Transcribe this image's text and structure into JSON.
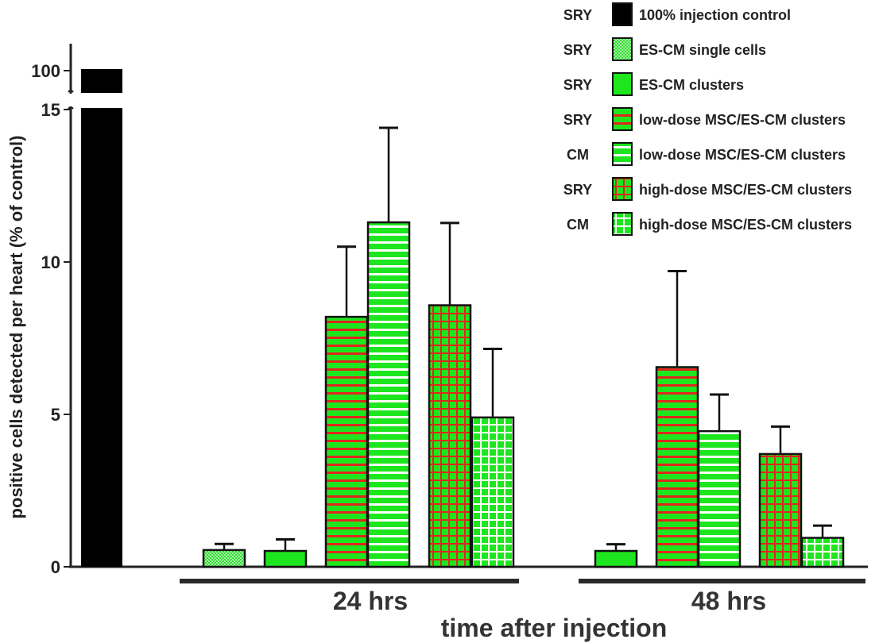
{
  "chart_data": {
    "type": "bar",
    "xlabel": "time after injection",
    "ylabel": "positive cells detected per heart (% of control)",
    "ylim": [
      0,
      15
    ],
    "y_break": {
      "lower_max": 15,
      "upper_tick": 100
    },
    "yticks": [
      "0",
      "5",
      "10",
      "15"
    ],
    "upper_ytick": "100",
    "groups": [
      "24 hrs",
      "48 hrs"
    ],
    "series": [
      {
        "key": "control",
        "prefix": "SRY",
        "name": "100% injection control",
        "pattern": "solid",
        "color": "#000000",
        "values": {
          "control": 100
        }
      },
      {
        "key": "single",
        "prefix": "SRY",
        "name": "ES-CM single cells",
        "pattern": "dots",
        "color": "#22d422",
        "values": {
          "24 hrs": 0.55,
          "48 hrs": null
        },
        "errors": {
          "24 hrs": 0.2
        }
      },
      {
        "key": "clusters",
        "prefix": "SRY",
        "name": "ES-CM clusters",
        "pattern": "solid",
        "color": "#1ee61e",
        "values": {
          "24 hrs": 0.52,
          "48 hrs": 0.52
        },
        "errors": {
          "24 hrs": 0.38,
          "48 hrs": 0.22
        }
      },
      {
        "key": "low_sry",
        "prefix": "SRY",
        "name": "low-dose MSC/ES-CM clusters",
        "pattern": "hstripe-red",
        "color": "#1ee61e",
        "values": {
          "24 hrs": 8.2,
          "48 hrs": 6.55
        },
        "errors": {
          "24 hrs": 2.3,
          "48 hrs": 3.15
        }
      },
      {
        "key": "low_cm",
        "prefix": "CM",
        "name": "low-dose MSC/ES-CM clusters",
        "pattern": "hstripe-white",
        "color": "#1ee61e",
        "values": {
          "24 hrs": 11.3,
          "48 hrs": 4.45
        },
        "errors": {
          "24 hrs": 3.1,
          "48 hrs": 1.2
        }
      },
      {
        "key": "high_sry",
        "prefix": "SRY",
        "name": "high-dose MSC/ES-CM clusters",
        "pattern": "grid-red",
        "color": "#1ee61e",
        "values": {
          "24 hrs": 8.58,
          "48 hrs": 3.7
        },
        "errors": {
          "24 hrs": 2.7,
          "48 hrs": 0.9
        }
      },
      {
        "key": "high_cm",
        "prefix": "CM",
        "name": "high-dose MSC/ES-CM clusters",
        "pattern": "grid-white",
        "color": "#1ee61e",
        "values": {
          "24 hrs": 4.9,
          "48 hrs": 0.95
        },
        "errors": {
          "24 hrs": 2.25,
          "48 hrs": 0.4
        }
      }
    ]
  }
}
